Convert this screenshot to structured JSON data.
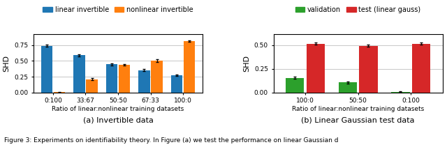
{
  "chart_data": [
    {
      "type": "bar",
      "subtitle": "(a) Invertible data",
      "categories": [
        "0:100",
        "33:67",
        "50:50",
        "67:33",
        "100:0"
      ],
      "series": [
        {
          "name": "linear invertible",
          "values": [
            0.74,
            0.59,
            0.445,
            0.355,
            0.27
          ],
          "errors": [
            0.018,
            0.015,
            0.015,
            0.015,
            0.012
          ]
        },
        {
          "name": "nonlinear invertible",
          "values": [
            0.003,
            0.21,
            0.44,
            0.505,
            0.815
          ],
          "errors": [
            0.002,
            0.015,
            0.015,
            0.022,
            0.015
          ]
        }
      ],
      "xlabel": "Ratio of linear:nonlinear training datasets",
      "ylabel": "SHD",
      "ylim": [
        0.0,
        0.93
      ],
      "yticks": [
        {
          "value": 0.0,
          "label": "0.00"
        },
        {
          "value": 0.25,
          "label": "0.25"
        },
        {
          "value": 0.5,
          "label": "0.50"
        },
        {
          "value": 0.75,
          "label": "0.75"
        }
      ],
      "grid": true,
      "legend": "upper center"
    },
    {
      "type": "bar",
      "subtitle": "(b) Linear Gaussian test data",
      "categories": [
        "100:0",
        "50:50",
        "0:100"
      ],
      "series": [
        {
          "name": "validation",
          "values": [
            0.155,
            0.105,
            0.006
          ],
          "errors": [
            0.012,
            0.01,
            0.003
          ]
        },
        {
          "name": "test (linear gauss)",
          "values": [
            0.515,
            0.495,
            0.515
          ],
          "errors": [
            0.01,
            0.008,
            0.01
          ]
        }
      ],
      "xlabel": "Ratio of linear:nonlinear training datasets",
      "ylabel": "SHD",
      "ylim": [
        0.0,
        0.62
      ],
      "yticks": [
        {
          "value": 0.0,
          "label": "0.00"
        },
        {
          "value": 0.25,
          "label": "0.25"
        },
        {
          "value": 0.5,
          "label": "0.50"
        }
      ],
      "grid": true,
      "legend": "upper center"
    }
  ],
  "caption": "Figure 3: Experiments on identifiability theory. In Figure (a) we test the performance on linear Gaussian d"
}
